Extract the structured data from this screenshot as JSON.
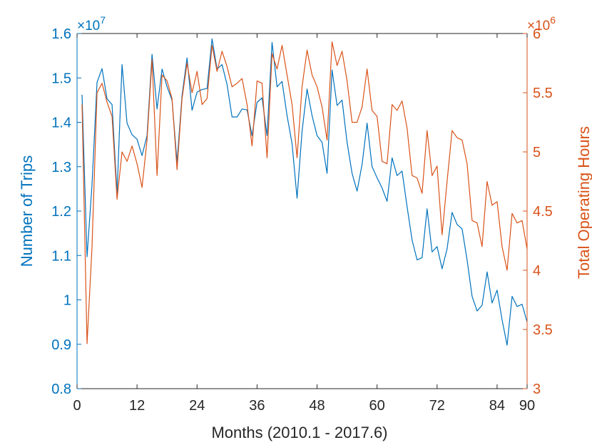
{
  "chart_data": {
    "type": "line",
    "title": "",
    "xlabel": "Months (2010.1 - 2017.6)",
    "ylabel_left": "Number of Trips",
    "ylabel_right": "Total Operating Hours",
    "xlim": [
      0,
      90
    ],
    "x_ticks": [
      0,
      12,
      24,
      36,
      48,
      60,
      72,
      84,
      90
    ],
    "left_axis": {
      "ylim": [
        0.8,
        1.6
      ],
      "ticks": [
        0.8,
        0.9,
        1,
        1.1,
        1.2,
        1.3,
        1.4,
        1.5,
        1.6
      ],
      "tick_labels": [
        "0.8",
        "0.9",
        "1",
        "1.1",
        "1.2",
        "1.3",
        "1.4",
        "1.5",
        "1.6"
      ],
      "exponent_prefix": "×10",
      "exponent_power": "7",
      "color": "#0072BD"
    },
    "right_axis": {
      "ylim": [
        3,
        6
      ],
      "ticks": [
        3,
        3.5,
        4,
        4.5,
        5,
        5.5,
        6
      ],
      "tick_labels": [
        "3",
        "3.5",
        "4",
        "4.5",
        "5",
        "5.5",
        "6"
      ],
      "exponent_prefix": "×10",
      "exponent_power": "6",
      "color": "#D95319"
    },
    "grid": false,
    "series": [
      {
        "name": "Number of Trips",
        "axis": "left",
        "color": "#0072BD",
        "x_start": 1,
        "values": [
          1.462,
          1.097,
          1.26,
          1.49,
          1.521,
          1.453,
          1.44,
          1.24,
          1.53,
          1.398,
          1.372,
          1.362,
          1.325,
          1.37,
          1.553,
          1.43,
          1.52,
          1.48,
          1.45,
          1.31,
          1.46,
          1.545,
          1.427,
          1.468,
          1.474,
          1.476,
          1.588,
          1.52,
          1.53,
          1.485,
          1.412,
          1.412,
          1.43,
          1.428,
          1.37,
          1.445,
          1.455,
          1.37,
          1.58,
          1.48,
          1.492,
          1.415,
          1.352,
          1.229,
          1.38,
          1.475,
          1.415,
          1.37,
          1.355,
          1.285,
          1.518,
          1.438,
          1.45,
          1.355,
          1.285,
          1.245,
          1.305,
          1.398,
          1.3,
          1.275,
          1.252,
          1.222,
          1.32,
          1.28,
          1.29,
          1.21,
          1.135,
          1.09,
          1.095,
          1.205,
          1.108,
          1.12,
          1.07,
          1.115,
          1.197,
          1.17,
          1.16,
          1.09,
          1.008,
          0.975,
          0.988,
          1.063,
          0.993,
          1.022,
          0.955,
          0.898,
          1.008,
          0.985,
          0.99,
          0.95
        ]
      },
      {
        "name": "Total Operating Hours",
        "axis": "right",
        "color": "#D95319",
        "x_start": 1,
        "values": [
          5.4,
          3.38,
          4.2,
          5.5,
          5.58,
          5.42,
          5.3,
          4.6,
          5.0,
          4.92,
          5.05,
          4.9,
          4.7,
          5.1,
          5.78,
          4.8,
          5.65,
          5.6,
          5.45,
          4.85,
          5.45,
          5.75,
          5.5,
          5.68,
          5.4,
          5.45,
          5.9,
          5.68,
          5.85,
          5.72,
          5.55,
          5.58,
          5.62,
          5.4,
          5.05,
          5.6,
          5.58,
          4.95,
          5.83,
          5.7,
          5.9,
          5.65,
          5.4,
          4.95,
          5.55,
          5.86,
          5.65,
          5.55,
          5.38,
          5.1,
          5.93,
          5.73,
          5.85,
          5.6,
          5.25,
          5.25,
          5.38,
          5.7,
          5.35,
          5.3,
          4.92,
          4.9,
          5.4,
          5.35,
          5.43,
          5.2,
          4.8,
          4.78,
          4.65,
          5.18,
          4.8,
          4.88,
          4.3,
          4.75,
          5.18,
          5.12,
          5.1,
          4.9,
          4.42,
          4.4,
          4.2,
          4.75,
          4.55,
          4.58,
          4.2,
          4.0,
          4.48,
          4.4,
          4.42,
          4.18
        ]
      }
    ]
  }
}
